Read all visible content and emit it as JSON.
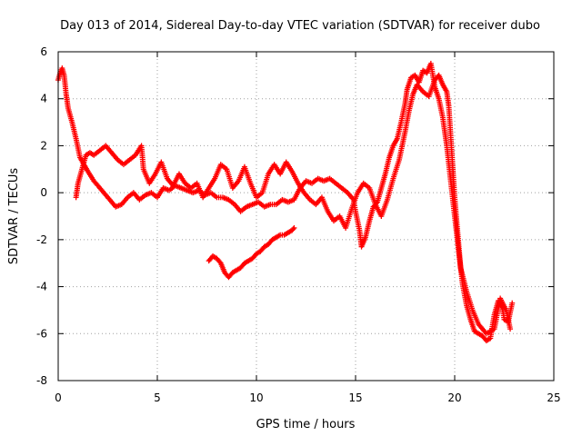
{
  "chart_data": {
    "type": "scatter",
    "title": "Day 013 of 2014, Sidereal Day-to-day VTEC variation (SDTVAR) for receiver dubo",
    "xlabel": "GPS time / hours",
    "ylabel": "SDTVAR / TECUs",
    "xlim": [
      0,
      25
    ],
    "ylim": [
      -8,
      6
    ],
    "xticks": [
      0,
      5,
      10,
      15,
      20,
      25
    ],
    "yticks": [
      -8,
      -6,
      -4,
      -2,
      0,
      2,
      4,
      6
    ],
    "grid": true,
    "marker": "+",
    "color": "#ff0000",
    "series": [
      {
        "name": "main",
        "points": [
          [
            0.0,
            4.8
          ],
          [
            0.1,
            5.1
          ],
          [
            0.2,
            5.3
          ],
          [
            0.3,
            5.0
          ],
          [
            0.4,
            4.2
          ],
          [
            0.5,
            3.6
          ],
          [
            0.7,
            3.0
          ],
          [
            0.9,
            2.3
          ],
          [
            1.1,
            1.5
          ],
          [
            1.3,
            1.2
          ],
          [
            1.5,
            0.9
          ],
          [
            1.8,
            0.5
          ],
          [
            2.0,
            0.3
          ],
          [
            2.3,
            0.0
          ],
          [
            2.6,
            -0.3
          ],
          [
            2.9,
            -0.6
          ],
          [
            3.2,
            -0.5
          ],
          [
            3.5,
            -0.2
          ],
          [
            3.8,
            0.0
          ],
          [
            4.1,
            -0.3
          ],
          [
            4.4,
            -0.1
          ],
          [
            4.7,
            0.0
          ],
          [
            5.0,
            -0.2
          ],
          [
            5.3,
            0.2
          ],
          [
            5.6,
            0.1
          ],
          [
            5.9,
            0.3
          ],
          [
            6.2,
            0.2
          ],
          [
            6.5,
            0.1
          ],
          [
            6.8,
            0.0
          ],
          [
            7.1,
            0.1
          ],
          [
            7.4,
            -0.1
          ],
          [
            7.7,
            0.0
          ],
          [
            8.0,
            -0.2
          ],
          [
            8.3,
            -0.2
          ],
          [
            8.6,
            -0.3
          ],
          [
            8.9,
            -0.5
          ],
          [
            9.2,
            -0.8
          ],
          [
            9.5,
            -0.6
          ],
          [
            9.8,
            -0.5
          ],
          [
            10.1,
            -0.4
          ],
          [
            10.4,
            -0.6
          ],
          [
            10.7,
            -0.5
          ],
          [
            11.0,
            -0.5
          ],
          [
            11.3,
            -0.3
          ],
          [
            11.6,
            -0.4
          ],
          [
            11.9,
            -0.3
          ],
          [
            12.2,
            0.2
          ],
          [
            12.5,
            0.5
          ],
          [
            12.8,
            0.4
          ],
          [
            13.1,
            0.6
          ],
          [
            13.4,
            0.5
          ],
          [
            13.7,
            0.6
          ],
          [
            14.0,
            0.4
          ],
          [
            14.3,
            0.2
          ],
          [
            14.6,
            0.0
          ],
          [
            14.9,
            -0.3
          ],
          [
            15.0,
            -0.8
          ],
          [
            15.2,
            -1.6
          ],
          [
            15.3,
            -2.3
          ],
          [
            15.5,
            -1.9
          ],
          [
            15.7,
            -1.2
          ],
          [
            15.9,
            -0.6
          ],
          [
            16.1,
            -0.4
          ],
          [
            16.3,
            0.2
          ],
          [
            16.5,
            0.8
          ],
          [
            16.7,
            1.5
          ],
          [
            16.9,
            2.0
          ],
          [
            17.1,
            2.3
          ],
          [
            17.3,
            3.0
          ],
          [
            17.5,
            3.8
          ],
          [
            17.6,
            4.4
          ],
          [
            17.8,
            4.9
          ],
          [
            18.0,
            5.0
          ],
          [
            18.2,
            4.7
          ],
          [
            18.4,
            5.2
          ],
          [
            18.6,
            5.1
          ],
          [
            18.8,
            5.5
          ],
          [
            19.0,
            4.5
          ],
          [
            19.2,
            4.0
          ],
          [
            19.4,
            3.2
          ],
          [
            19.6,
            2.0
          ],
          [
            19.8,
            0.5
          ],
          [
            20.0,
            -1.0
          ],
          [
            20.2,
            -2.5
          ],
          [
            20.4,
            -3.9
          ],
          [
            20.6,
            -4.8
          ],
          [
            20.8,
            -5.4
          ],
          [
            21.0,
            -5.9
          ],
          [
            21.2,
            -6.0
          ],
          [
            21.4,
            -6.1
          ],
          [
            21.6,
            -6.3
          ],
          [
            21.8,
            -6.2
          ],
          [
            22.0,
            -5.2
          ],
          [
            22.2,
            -4.6
          ],
          [
            22.4,
            -4.9
          ],
          [
            22.5,
            -5.4
          ],
          [
            22.7,
            -5.5
          ],
          [
            22.9,
            -4.7
          ]
        ]
      },
      {
        "name": "loops",
        "points": [
          [
            0.9,
            -0.2
          ],
          [
            1.0,
            0.4
          ],
          [
            1.2,
            1.0
          ],
          [
            1.4,
            1.6
          ],
          [
            1.6,
            1.7
          ],
          [
            1.8,
            1.6
          ],
          [
            2.1,
            1.8
          ],
          [
            2.4,
            2.0
          ],
          [
            2.7,
            1.7
          ],
          [
            3.0,
            1.4
          ],
          [
            3.3,
            1.2
          ],
          [
            3.6,
            1.4
          ],
          [
            3.9,
            1.6
          ],
          [
            4.2,
            2.0
          ],
          [
            4.3,
            1.0
          ],
          [
            4.6,
            0.4
          ],
          [
            4.9,
            0.8
          ],
          [
            5.2,
            1.3
          ],
          [
            5.5,
            0.6
          ],
          [
            5.8,
            0.3
          ],
          [
            6.1,
            0.8
          ],
          [
            6.4,
            0.4
          ],
          [
            6.7,
            0.2
          ],
          [
            7.0,
            0.4
          ],
          [
            7.3,
            -0.2
          ],
          [
            7.6,
            0.2
          ],
          [
            7.9,
            0.6
          ],
          [
            8.2,
            1.2
          ],
          [
            8.5,
            1.0
          ],
          [
            8.8,
            0.2
          ],
          [
            9.1,
            0.5
          ],
          [
            9.4,
            1.1
          ],
          [
            9.7,
            0.4
          ],
          [
            10.0,
            -0.2
          ],
          [
            10.3,
            0.0
          ],
          [
            10.6,
            0.8
          ],
          [
            10.9,
            1.2
          ],
          [
            11.2,
            0.8
          ],
          [
            11.5,
            1.3
          ],
          [
            11.8,
            0.9
          ],
          [
            12.1,
            0.4
          ],
          [
            12.4,
            0.0
          ],
          [
            12.7,
            -0.3
          ],
          [
            13.0,
            -0.5
          ],
          [
            13.3,
            -0.2
          ],
          [
            13.6,
            -0.8
          ],
          [
            13.9,
            -1.2
          ],
          [
            14.2,
            -1.0
          ],
          [
            14.5,
            -1.5
          ],
          [
            14.8,
            -0.7
          ],
          [
            15.1,
            0.0
          ],
          [
            15.4,
            0.4
          ],
          [
            15.7,
            0.2
          ],
          [
            16.0,
            -0.5
          ],
          [
            16.3,
            -1.0
          ],
          [
            16.6,
            -0.3
          ],
          [
            16.9,
            0.6
          ],
          [
            17.2,
            1.4
          ],
          [
            17.5,
            2.6
          ],
          [
            17.7,
            3.5
          ],
          [
            17.9,
            4.2
          ],
          [
            18.1,
            4.6
          ],
          [
            18.4,
            4.3
          ],
          [
            18.7,
            4.1
          ],
          [
            19.0,
            4.8
          ],
          [
            19.2,
            5.0
          ],
          [
            19.4,
            4.6
          ],
          [
            19.6,
            4.3
          ],
          [
            19.7,
            3.7
          ],
          [
            20.0,
            -0.2
          ],
          [
            20.3,
            -3.2
          ],
          [
            20.6,
            -4.2
          ],
          [
            20.9,
            -5.0
          ],
          [
            21.2,
            -5.6
          ],
          [
            21.6,
            -6.0
          ],
          [
            22.0,
            -5.8
          ],
          [
            22.3,
            -4.5
          ],
          [
            22.6,
            -5.0
          ],
          [
            22.8,
            -5.8
          ]
        ]
      },
      {
        "name": "lower-trace",
        "points": [
          [
            7.6,
            -2.9
          ],
          [
            7.8,
            -2.7
          ],
          [
            8.0,
            -2.8
          ],
          [
            8.2,
            -3.0
          ],
          [
            8.4,
            -3.4
          ],
          [
            8.6,
            -3.6
          ],
          [
            8.8,
            -3.4
          ],
          [
            9.0,
            -3.3
          ],
          [
            9.2,
            -3.2
          ],
          [
            9.4,
            -3.0
          ],
          [
            9.6,
            -2.9
          ],
          [
            9.8,
            -2.8
          ],
          [
            10.0,
            -2.6
          ],
          [
            10.2,
            -2.5
          ],
          [
            10.4,
            -2.3
          ],
          [
            10.6,
            -2.2
          ],
          [
            10.8,
            -2.0
          ],
          [
            11.0,
            -1.9
          ],
          [
            11.2,
            -1.8
          ],
          [
            11.4,
            -1.8
          ],
          [
            11.6,
            -1.7
          ],
          [
            11.8,
            -1.6
          ],
          [
            11.9,
            -1.5
          ]
        ]
      }
    ]
  }
}
